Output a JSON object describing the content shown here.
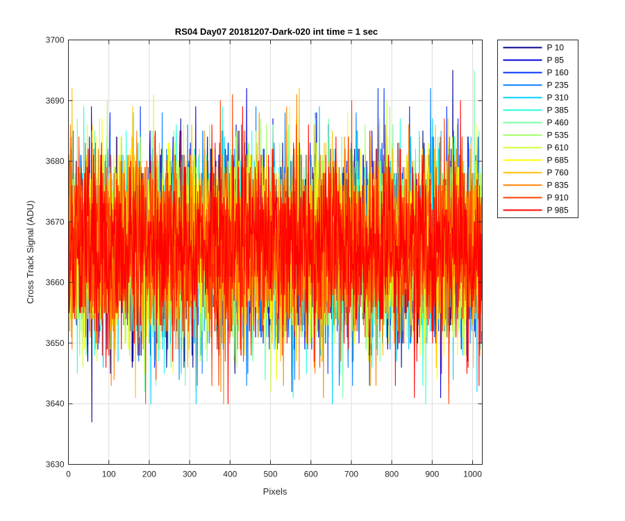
{
  "chart_data": {
    "type": "line",
    "title": "RS04 Day07 20181207-Dark-020 int time = 1 sec",
    "xlabel": "Pixels",
    "ylabel": "Cross Track Signal (ADU)",
    "xlim": [
      0,
      1024
    ],
    "ylim": [
      3630,
      3700
    ],
    "xticks": [
      0,
      100,
      200,
      300,
      400,
      500,
      600,
      700,
      800,
      900,
      1000
    ],
    "yticks": [
      3630,
      3640,
      3650,
      3660,
      3670,
      3680,
      3690,
      3700
    ],
    "xtick_labels": [
      "0",
      "100",
      "200",
      "300",
      "400",
      "500",
      "600",
      "700",
      "800",
      "900",
      "1000"
    ],
    "ytick_labels": [
      "3630",
      "3640",
      "3650",
      "3660",
      "3670",
      "3680",
      "3690",
      "3700"
    ],
    "grid": true,
    "legend_position": "outside-top-right",
    "noise_model": {
      "n_points": 1024,
      "mean": 3666,
      "std": 7.5,
      "min_clip": 3637,
      "max_clip": 3695
    },
    "series": [
      {
        "name": "P 10",
        "color": "#00008f",
        "extremes": [
          [
            57,
            3637
          ],
          [
            950,
            3695
          ]
        ]
      },
      {
        "name": "P 85",
        "color": "#0000df",
        "extremes": [
          [
            440,
            3692
          ],
          [
            920,
            3641
          ]
        ]
      },
      {
        "name": "P 160",
        "color": "#0030ff",
        "extremes": [
          [
            765,
            3692
          ],
          [
            935,
            3689
          ]
        ]
      },
      {
        "name": "P 235",
        "color": "#0080ff",
        "extremes": [
          [
            330,
            3645
          ],
          [
            610,
            3688
          ]
        ]
      },
      {
        "name": "P 310",
        "color": "#00cfff",
        "extremes": [
          [
            315,
            3640
          ],
          [
            620,
            3689
          ]
        ]
      },
      {
        "name": "P 385",
        "color": "#20ffdf",
        "extremes": [
          [
            555,
            3641
          ],
          [
            380,
            3689
          ]
        ]
      },
      {
        "name": "P 460",
        "color": "#70ffa0",
        "extremes": [
          [
            1003,
            3695
          ],
          [
            150,
            3648
          ]
        ]
      },
      {
        "name": "P 535",
        "color": "#9fff60",
        "extremes": [
          [
            95,
            3690
          ],
          [
            860,
            3650
          ]
        ]
      },
      {
        "name": "P 610",
        "color": "#d0ff30",
        "extremes": [
          [
            210,
            3691
          ],
          [
            500,
            3642
          ]
        ]
      },
      {
        "name": "P 685",
        "color": "#ffff00",
        "extremes": [
          [
            258,
            3645
          ],
          [
            690,
            3688
          ]
        ]
      },
      {
        "name": "P 760",
        "color": "#ffbf00",
        "extremes": [
          [
            165,
            3641
          ],
          [
            8,
            3692
          ]
        ]
      },
      {
        "name": "P 835",
        "color": "#ff8000",
        "extremes": [
          [
            105,
            3643
          ],
          [
            760,
            3643
          ]
        ]
      },
      {
        "name": "P 910",
        "color": "#ff4000",
        "extremes": [
          [
            405,
            3691
          ],
          [
            700,
            3690
          ]
        ]
      },
      {
        "name": "P 985",
        "color": "#ff0000",
        "extremes": [
          [
            855,
            3641
          ],
          [
            430,
            3689
          ]
        ]
      }
    ]
  }
}
